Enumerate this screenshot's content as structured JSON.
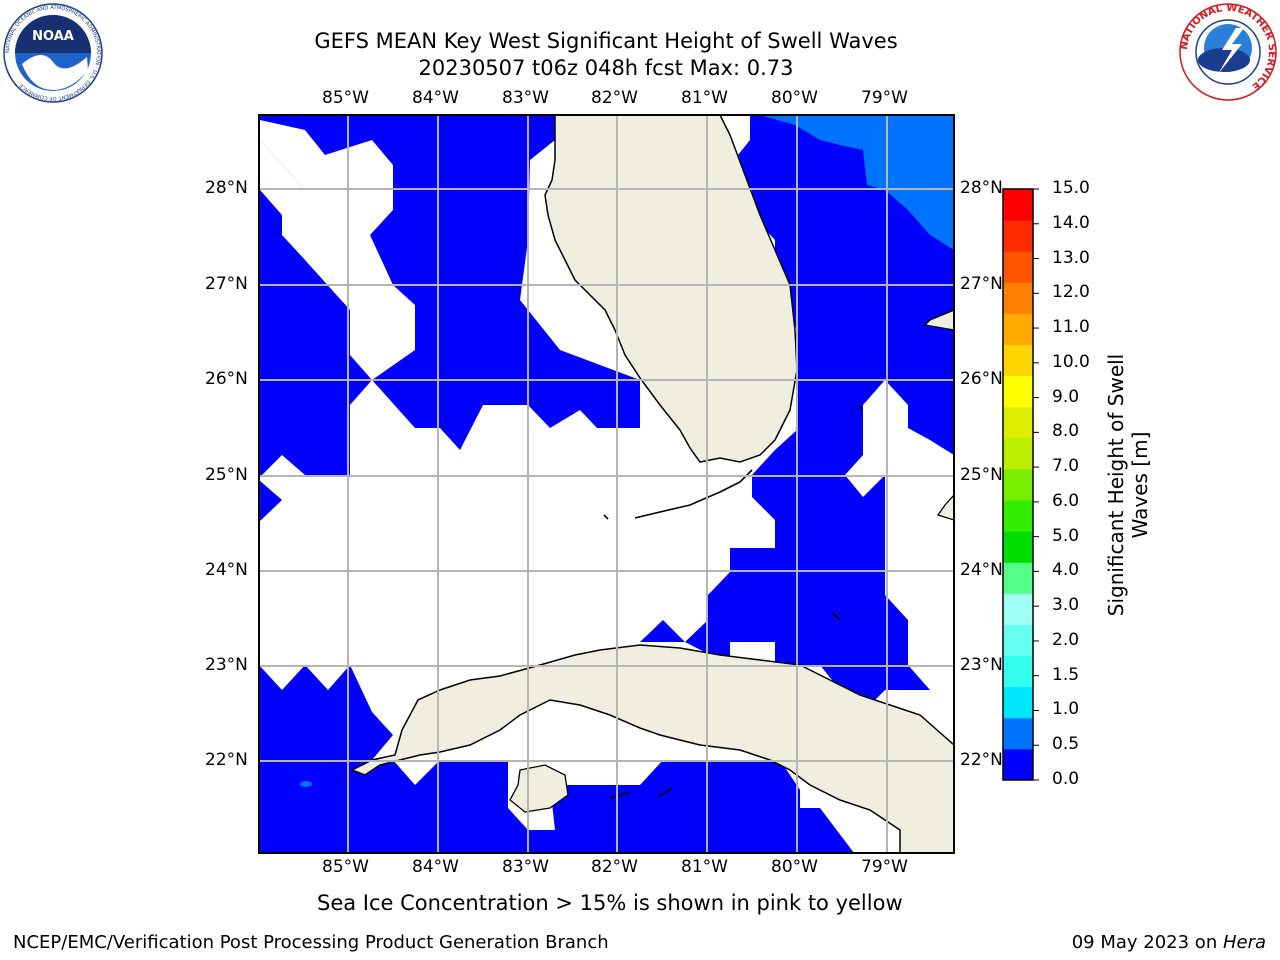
{
  "header": {
    "title_line1": "GEFS MEAN Key West Significant Height of Swell Waves",
    "title_line2": "20230507 t06z 048h fcst   Max: 0.73"
  },
  "logos": {
    "left": {
      "text": "NOAA",
      "ring_text": "NATIONAL OCEANIC AND ATMOSPHERIC ADMINISTRATION · U.S. DEPARTMENT OF COMMERCE"
    },
    "right": {
      "ring_text": "NATIONAL WEATHER SERVICE"
    }
  },
  "map": {
    "lon_labels": [
      "85°W",
      "84°W",
      "83°W",
      "82°W",
      "81°W",
      "80°W",
      "79°W"
    ],
    "lat_labels": [
      "28°N",
      "27°N",
      "26°N",
      "25°N",
      "24°N",
      "23°N",
      "22°N"
    ],
    "colors": {
      "swell_low": "#0000ff",
      "swell_mid": "#0073ff",
      "land": "#efeedf",
      "grid": "#b5b5b5",
      "no_data": "#ffffff"
    }
  },
  "colorbar": {
    "label_line1": "Significant Height of Swell",
    "label_line2": "Waves [m]",
    "ticks": [
      "0.0",
      "0.5",
      "1.0",
      "1.5",
      "2.0",
      "3.0",
      "4.0",
      "5.0",
      "6.0",
      "7.0",
      "8.0",
      "9.0",
      "10.0",
      "11.0",
      "12.0",
      "13.0",
      "14.0",
      "15.0"
    ],
    "colors": [
      "#0000ff",
      "#0073ff",
      "#00e6ff",
      "#33ffee",
      "#66fff0",
      "#9ffff5",
      "#55ff88",
      "#00dd00",
      "#33ee00",
      "#77ee00",
      "#bbee00",
      "#ddee00",
      "#ffff00",
      "#ffd500",
      "#ffaa00",
      "#ff8000",
      "#ff5500",
      "#ff2a00",
      "#ff0000"
    ]
  },
  "note": "Sea Ice Concentration > 15% is shown in pink to yellow",
  "footer": {
    "left": "NCEP/EMC/Verification Post Processing Product Generation Branch",
    "date": "09 May 2023 on ",
    "host": "Hera"
  }
}
